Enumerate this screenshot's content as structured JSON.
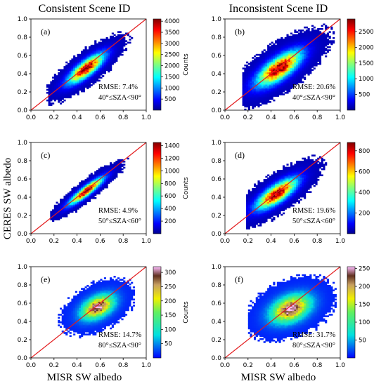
{
  "column_titles": [
    "Consistent Scene ID",
    "Inconsistent Scene ID"
  ],
  "ylabel": "CERES SW albedo",
  "xlabel": "MISR SW albedo",
  "colorbar_label": "Counts",
  "chart_data": [
    {
      "type": "heatmap",
      "panel": "(a)",
      "xlim": [
        0.0,
        1.0
      ],
      "ylim": [
        0.0,
        1.0
      ],
      "x_ticks": [
        "0.0",
        "0.2",
        "0.4",
        "0.6",
        "0.8",
        "1.0"
      ],
      "y_ticks": [
        "0.0",
        "0.2",
        "0.4",
        "0.6",
        "0.8",
        "1.0"
      ],
      "rmse": "RMSE: 7.4%",
      "sza": "40°≤SZA<90°",
      "colorbar_ticks": [
        500,
        1000,
        1500,
        2000,
        2500,
        3000,
        3500,
        4000
      ],
      "colorbar_max": 4100,
      "cloud": {
        "cx": 0.48,
        "cy": 0.46,
        "slope": 1.05,
        "spread": 0.055,
        "len": 0.17,
        "xmin": 0.13,
        "xmax": 0.88,
        "peak": 4000
      },
      "one_to_one_line": true
    },
    {
      "type": "heatmap",
      "panel": "(b)",
      "xlim": [
        0.0,
        1.0
      ],
      "ylim": [
        0.0,
        1.0
      ],
      "x_ticks": [
        "0.0",
        "0.2",
        "0.4",
        "0.6",
        "0.8",
        "1.0"
      ],
      "y_ticks": [
        "0.0",
        "0.2",
        "0.4",
        "0.6",
        "0.8",
        "1.0"
      ],
      "rmse": "RMSE: 20.6%",
      "sza": "40°≤SZA<90°",
      "colorbar_ticks": [
        500,
        1000,
        1500,
        2000,
        2500
      ],
      "colorbar_max": 2900,
      "cloud": {
        "cx": 0.47,
        "cy": 0.46,
        "slope": 1.0,
        "spread": 0.08,
        "len": 0.2,
        "xmin": 0.15,
        "xmax": 1.0,
        "peak": 2800
      },
      "one_to_one_line": true
    },
    {
      "type": "heatmap",
      "panel": "(c)",
      "xlim": [
        0.0,
        1.0
      ],
      "ylim": [
        0.0,
        1.0
      ],
      "x_ticks": [
        "0.0",
        "0.2",
        "0.4",
        "0.6",
        "0.8",
        "1.0"
      ],
      "y_ticks": [
        "0.0",
        "0.2",
        "0.4",
        "0.6",
        "0.8",
        "1.0"
      ],
      "rmse": "RMSE: 4.9%",
      "sza": "50°≤SZA<60°",
      "colorbar_ticks": [
        200,
        400,
        600,
        800,
        1000,
        1200,
        1400
      ],
      "colorbar_max": 1450,
      "cloud": {
        "cx": 0.48,
        "cy": 0.47,
        "slope": 1.0,
        "spread": 0.035,
        "len": 0.16,
        "xmin": 0.16,
        "xmax": 0.85,
        "peak": 1400
      },
      "one_to_one_line": true
    },
    {
      "type": "heatmap",
      "panel": "(d)",
      "xlim": [
        0.0,
        1.0
      ],
      "ylim": [
        0.0,
        1.0
      ],
      "x_ticks": [
        "0.0",
        "0.2",
        "0.4",
        "0.6",
        "0.8",
        "1.0"
      ],
      "y_ticks": [
        "0.0",
        "0.2",
        "0.4",
        "0.6",
        "0.8",
        "1.0"
      ],
      "rmse": "RMSE: 19.6%",
      "sza": "50°≤SZA<60°",
      "colorbar_ticks": [
        200,
        400,
        600,
        800
      ],
      "colorbar_max": 880,
      "cloud": {
        "cx": 0.45,
        "cy": 0.44,
        "slope": 0.95,
        "spread": 0.065,
        "len": 0.18,
        "xmin": 0.18,
        "xmax": 0.96,
        "peak": 850
      },
      "one_to_one_line": true
    },
    {
      "type": "heatmap",
      "panel": "(e)",
      "xlim": [
        0.0,
        1.0
      ],
      "ylim": [
        0.0,
        1.0
      ],
      "x_ticks": [
        "0.0",
        "0.2",
        "0.4",
        "0.6",
        "0.8",
        "1.0"
      ],
      "y_ticks": [
        "0.0",
        "0.2",
        "0.4",
        "0.6",
        "0.8",
        "1.0"
      ],
      "rmse": "RMSE: 14.7%",
      "sza": "80°≤SZA<90°",
      "colorbar_ticks": [
        50,
        100,
        150,
        200,
        250,
        300
      ],
      "colorbar_max": 320,
      "cloud": {
        "cx": 0.58,
        "cy": 0.56,
        "slope": 0.9,
        "spread": 0.08,
        "len": 0.13,
        "xmin": 0.2,
        "xmax": 0.9,
        "peak": 320
      },
      "one_to_one_line": true
    },
    {
      "type": "heatmap",
      "panel": "(f)",
      "xlim": [
        0.0,
        1.0
      ],
      "ylim": [
        0.0,
        1.0
      ],
      "x_ticks": [
        "0.0",
        "0.2",
        "0.4",
        "0.6",
        "0.8",
        "1.0"
      ],
      "y_ticks": [
        "0.0",
        "0.2",
        "0.4",
        "0.6",
        "0.8",
        "1.0"
      ],
      "rmse": "RMSE: 31.7%",
      "sza": "80°≤SZA<90°",
      "colorbar_ticks": [
        50,
        100,
        150,
        200,
        250
      ],
      "colorbar_max": 255,
      "cloud": {
        "cx": 0.57,
        "cy": 0.54,
        "slope": 0.75,
        "spread": 0.1,
        "len": 0.15,
        "xmin": 0.2,
        "xmax": 0.96,
        "peak": 250
      },
      "one_to_one_line": true
    }
  ]
}
